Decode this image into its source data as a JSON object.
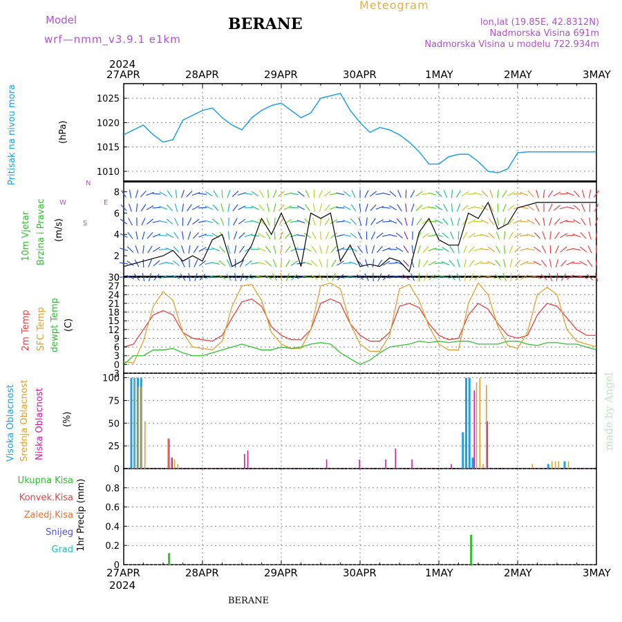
{
  "header": {
    "model_label": "Model",
    "model_name": "wrf—nmm_v3.9.1  e1km",
    "title": "BERANE",
    "subtitle": "Meteogram",
    "coords": "lon,lat (19.85E, 42.8312N)",
    "elevation": "Nadmorska Visina 691m",
    "model_elevation": "Nadmorska Visina u modelu 722.934m",
    "footer_title": "BERANE",
    "credit": "made by Angel"
  },
  "colors": {
    "pressure": "#1ea0e6",
    "t2m": "#e84040",
    "sfc": "#e0a030",
    "dewpt": "#30c030",
    "high_cloud": "#1ea0e6",
    "mid_cloud": "#e0a030",
    "low_cloud": "#d0209a",
    "title_purple": "#b050d0",
    "meteogram_orange": "#e0b050"
  },
  "chart_data": {
    "type": "line",
    "x_axis": {
      "year_top": "2024",
      "year_bottom": "2024",
      "tick_labels": [
        "27APR",
        "28APR",
        "29APR",
        "30APR",
        "1MAY",
        "2MAY",
        "3MAY"
      ],
      "range_hours": [
        0,
        144
      ]
    },
    "panels": [
      {
        "id": "pressure",
        "ylabel": "Pritisak na nivou mora",
        "unit": "(hPa)",
        "ylim": [
          1008,
          1028
        ],
        "yticks": [
          1010,
          1015,
          1020,
          1025
        ],
        "series": [
          {
            "color_key": "pressure",
            "x": [
              0,
              3,
              6,
              9,
              12,
              15,
              18,
              21,
              24,
              27,
              30,
              33,
              36,
              39,
              42,
              45,
              48,
              51,
              54,
              57,
              60,
              63,
              66,
              69,
              72,
              75,
              78,
              81,
              84,
              87,
              90,
              93,
              96,
              99,
              102,
              105,
              108,
              111,
              114,
              117,
              120,
              123,
              126,
              129,
              132,
              135,
              138,
              141,
              144
            ],
            "y": [
              1017.5,
              1018.5,
              1019.5,
              1017.5,
              1016,
              1016.5,
              1020.5,
              1021.5,
              1022.5,
              1023,
              1021,
              1019.5,
              1018.5,
              1021,
              1022.5,
              1023.5,
              1024,
              1022.5,
              1021,
              1022,
              1025,
              1025.5,
              1026,
              1022.5,
              1020,
              1018,
              1019,
              1018.5,
              1017.5,
              1016,
              1014,
              1011.5,
              1011.5,
              1013,
              1013.5,
              1013.5,
              1012,
              1010,
              1009.7,
              1010.5,
              1013.8,
              1014,
              1014,
              1014,
              1014,
              1014,
              1014,
              1014,
              1014
            ]
          }
        ]
      },
      {
        "id": "wind",
        "ylabel": "10m Vjetar",
        "ylabel2": "Brzina i Pravac",
        "unit": "(m/s)",
        "ylim": [
          0,
          9
        ],
        "yticks": [
          0,
          2,
          4,
          6,
          8
        ],
        "compass": {
          "n": "N",
          "w": "W",
          "e": "E",
          "s": "S"
        },
        "series": [
          {
            "name": "10m wind speed",
            "x": [
              0,
              6,
              12,
              15,
              18,
              21,
              24,
              27,
              30,
              33,
              36,
              39,
              42,
              45,
              48,
              51,
              54,
              57,
              60,
              63,
              66,
              69,
              72,
              75,
              78,
              81,
              84,
              87,
              90,
              93,
              96,
              99,
              102,
              105,
              108,
              111,
              114,
              117,
              120,
              126,
              132,
              138,
              144
            ],
            "y": [
              1,
              1.5,
              2,
              2.5,
              1.5,
              2,
              1.5,
              3.5,
              4,
              1,
              1.5,
              3,
              5.5,
              4,
              6,
              4,
              1,
              6,
              5.5,
              6,
              1.5,
              3,
              1,
              1.2,
              1,
              1.8,
              1.5,
              0.5,
              4.2,
              5.5,
              3.5,
              3,
              3,
              6,
              5.5,
              7,
              4.5,
              5,
              6.5,
              7,
              7,
              7,
              7
            ]
          }
        ]
      },
      {
        "id": "temperature",
        "ylabels": [
          "2m Temp",
          "SFC Temp",
          "dewpt Temp"
        ],
        "unit": "(C)",
        "ylim": [
          -3,
          30
        ],
        "yticks": [
          -3,
          0,
          3,
          6,
          9,
          12,
          15,
          18,
          21,
          24,
          27,
          30
        ],
        "series": [
          {
            "name": "2m Temp",
            "color_key": "t2m",
            "x": [
              0,
              3,
              6,
              9,
              12,
              15,
              18,
              21,
              24,
              27,
              30,
              33,
              36,
              39,
              42,
              45,
              48,
              51,
              54,
              57,
              60,
              63,
              66,
              69,
              72,
              75,
              78,
              81,
              84,
              87,
              90,
              93,
              96,
              99,
              102,
              105,
              108,
              111,
              114,
              117,
              120,
              123,
              126,
              129,
              132,
              135,
              138,
              141,
              144
            ],
            "y": [
              6,
              7,
              12,
              17,
              18.5,
              17,
              11,
              9,
              8.5,
              8,
              10,
              16,
              21.5,
              22.5,
              20,
              13,
              10,
              8.5,
              8.5,
              12,
              21,
              22.5,
              21,
              14,
              10,
              8,
              8,
              11,
              20,
              21,
              19.5,
              14,
              10,
              8.5,
              9,
              17,
              21,
              19,
              14,
              10,
              9,
              10,
              17,
              21,
              20,
              16,
              12,
              10,
              10
            ]
          },
          {
            "name": "SFC Temp",
            "color_key": "sfc",
            "x": [
              0,
              3,
              6,
              9,
              12,
              15,
              18,
              21,
              24,
              27,
              30,
              33,
              36,
              39,
              42,
              45,
              48,
              51,
              54,
              57,
              60,
              63,
              66,
              69,
              72,
              75,
              78,
              81,
              84,
              87,
              90,
              93,
              96,
              99,
              102,
              105,
              108,
              111,
              114,
              117,
              120,
              123,
              126,
              129,
              132,
              135,
              138,
              141,
              144
            ],
            "y": [
              1,
              0.5,
              8,
              20,
              25,
              22,
              11,
              6,
              5.5,
              5,
              8,
              20,
              27,
              27.5,
              22,
              11,
              7,
              5.5,
              5.5,
              12,
              27,
              28,
              26,
              14,
              7,
              4.5,
              4.5,
              10,
              26,
              27.5,
              22,
              13,
              7,
              5,
              5,
              21,
              28,
              24,
              13,
              6.5,
              5.5,
              11,
              24,
              26.5,
              24,
              12,
              8,
              7,
              6
            ]
          },
          {
            "name": "dewpt Temp",
            "color_key": "dewpt",
            "x": [
              0,
              3,
              6,
              9,
              12,
              15,
              18,
              21,
              24,
              27,
              30,
              33,
              36,
              39,
              42,
              45,
              48,
              51,
              54,
              57,
              60,
              63,
              66,
              69,
              72,
              75,
              78,
              81,
              84,
              87,
              90,
              93,
              96,
              99,
              102,
              105,
              108,
              111,
              114,
              117,
              120,
              123,
              126,
              129,
              132,
              135,
              138,
              141,
              144
            ],
            "y": [
              0,
              3,
              3,
              5,
              5,
              5.5,
              4,
              3,
              3,
              4,
              5,
              6,
              7,
              6,
              5,
              5,
              6,
              5.5,
              6,
              7,
              7.5,
              7,
              4,
              2,
              0,
              1.5,
              4,
              6,
              6.5,
              7,
              8,
              7.5,
              8,
              7.5,
              8,
              8,
              7,
              7,
              7,
              8,
              8,
              7,
              6.5,
              7.5,
              7.5,
              7,
              7,
              6,
              5
            ]
          }
        ]
      },
      {
        "id": "clouds",
        "ylabels": [
          "Visoka Oblacnost",
          "Srednja Oblacnost",
          "Niska Oblacnost"
        ],
        "unit": "(%)",
        "ylim": [
          0,
          105
        ],
        "yticks": [
          0,
          25,
          50,
          75,
          100
        ],
        "series": [
          {
            "name": "Visoka Oblacnost",
            "color_key": "high_cloud",
            "x": [
              2,
              3,
              4,
              5,
              103,
              104,
              105,
              106,
              129,
              134
            ],
            "y": [
              100,
              100,
              100,
              100,
              40,
              100,
              100,
              12,
              5,
              8
            ]
          },
          {
            "name": "Srednja Oblacnost",
            "color_key": "mid_cloud",
            "x": [
              3,
              4,
              5,
              6,
              13,
              14,
              15,
              16,
              107,
              108,
              109,
              110,
              124,
              130,
              131,
              132,
              135
            ],
            "y": [
              100,
              90,
              90,
              52,
              33,
              12,
              10,
              5,
              95,
              100,
              5,
              92,
              5,
              8,
              8,
              8,
              8
            ]
          },
          {
            "name": "Niska Oblacnost",
            "color_key": "low_cloud",
            "x": [
              13,
              14,
              36,
              37,
              61,
              71,
              79,
              82,
              87,
              99,
              106,
              110
            ],
            "y": [
              33,
              12,
              16,
              20,
              10,
              10,
              10,
              22,
              10,
              5,
              86,
              52
            ]
          }
        ]
      },
      {
        "id": "precip",
        "ylabels": [
          "Ukupna Kisa",
          "Konvek.Kisa",
          "Zaledj.Kisa",
          "Snijeg",
          "Grad"
        ],
        "ylabel_colors": [
          "#30c030",
          "#e84040",
          "#f07030",
          "#5050e0",
          "#20c0c0"
        ],
        "unit": "1hr Precip (mm)",
        "ylim": [
          0,
          1
        ],
        "yticks": [
          0,
          0.2,
          0.4,
          0.6,
          0.8
        ],
        "series": [
          {
            "name": "Ukupna Kisa",
            "x": [
              13.5,
              105.5
            ],
            "y": [
              0.12,
              0.31
            ]
          }
        ]
      }
    ]
  }
}
